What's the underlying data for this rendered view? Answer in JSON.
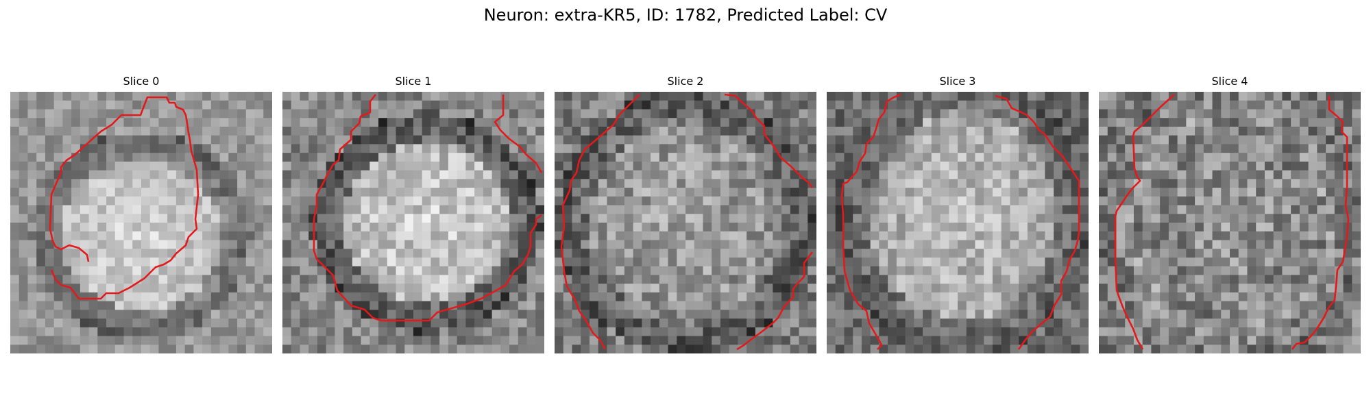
{
  "figure": {
    "title": "Neuron: extra-KR5, ID: 1782, Predicted Label: CV"
  },
  "panels": [
    {
      "title": "Slice 0"
    },
    {
      "title": "Slice 1"
    },
    {
      "title": "Slice 2"
    },
    {
      "title": "Slice 3"
    },
    {
      "title": "Slice 4"
    }
  ],
  "colors": {
    "contour": "#e31a1c",
    "background": "#ffffff"
  }
}
